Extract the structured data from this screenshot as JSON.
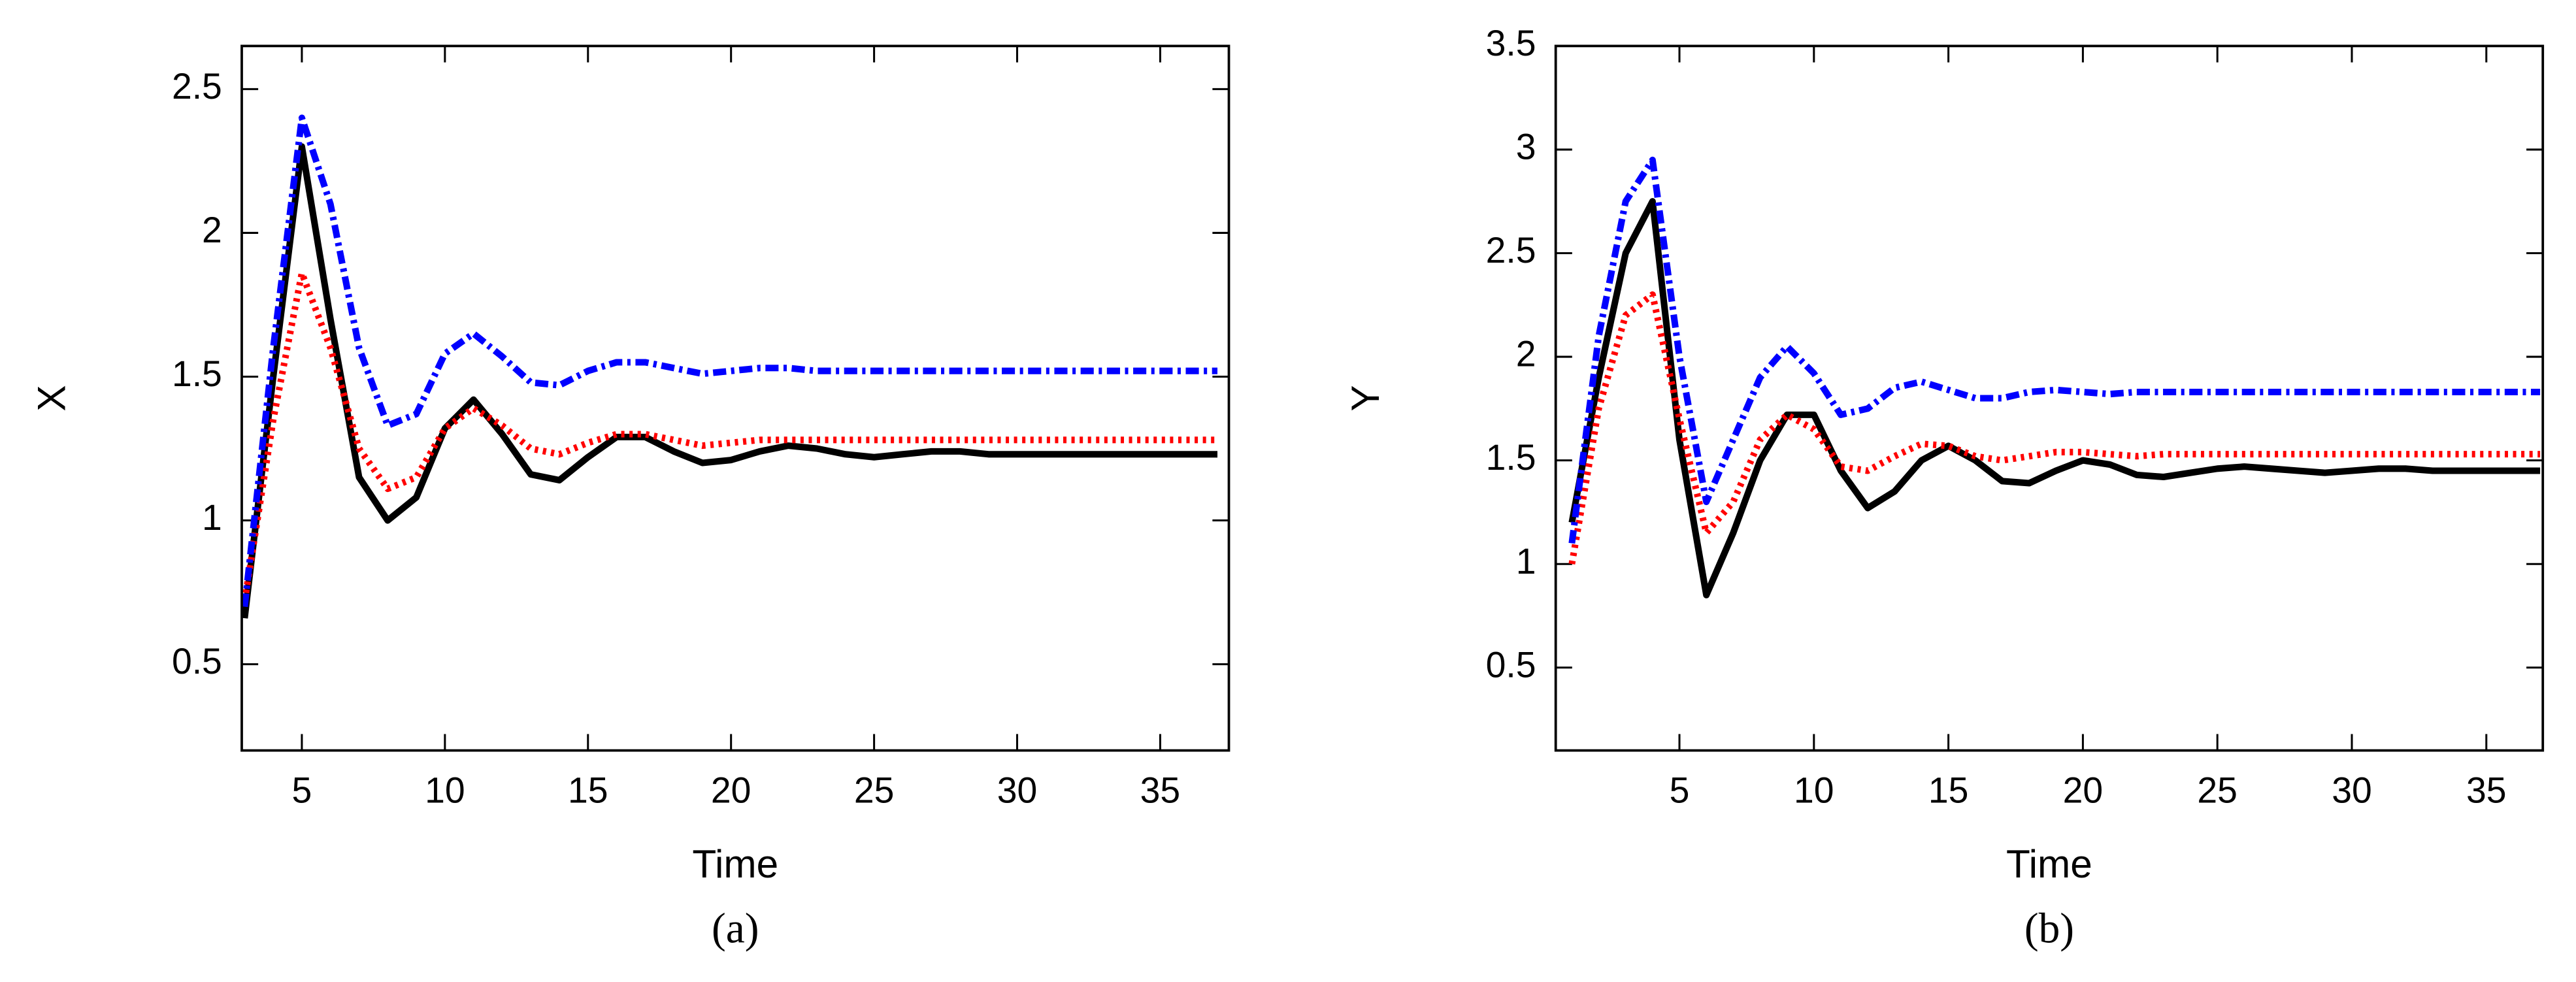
{
  "chart_data": [
    {
      "type": "line",
      "caption": "(a)",
      "xlabel": "Time",
      "ylabel": "X",
      "x": [
        3,
        4,
        5,
        6,
        7,
        8,
        9,
        10,
        11,
        12,
        13,
        14,
        15,
        16,
        17,
        18,
        19,
        20,
        21,
        22,
        23,
        24,
        25,
        26,
        27,
        28,
        29,
        30,
        31,
        32,
        33,
        34,
        35,
        36,
        37
      ],
      "series": [
        {
          "color": "#000000",
          "style": "solid",
          "values": [
            0.66,
            1.5,
            2.3,
            1.7,
            1.15,
            1.0,
            1.08,
            1.32,
            1.42,
            1.3,
            1.16,
            1.14,
            1.22,
            1.29,
            1.29,
            1.24,
            1.2,
            1.21,
            1.24,
            1.26,
            1.25,
            1.23,
            1.22,
            1.23,
            1.24,
            1.24,
            1.23,
            1.23,
            1.23,
            1.23,
            1.23,
            1.23,
            1.23,
            1.23,
            1.23
          ]
        },
        {
          "color": "#ff0000",
          "style": "dotted",
          "values": [
            0.72,
            1.35,
            1.86,
            1.6,
            1.25,
            1.11,
            1.15,
            1.32,
            1.39,
            1.33,
            1.25,
            1.23,
            1.27,
            1.3,
            1.3,
            1.28,
            1.26,
            1.27,
            1.28,
            1.28,
            1.28,
            1.28,
            1.28,
            1.28,
            1.28,
            1.28,
            1.28,
            1.28,
            1.28,
            1.28,
            1.28,
            1.28,
            1.28,
            1.28,
            1.28
          ]
        },
        {
          "color": "#0000ff",
          "style": "dashdot",
          "values": [
            0.7,
            1.6,
            2.4,
            2.1,
            1.6,
            1.33,
            1.37,
            1.58,
            1.65,
            1.57,
            1.48,
            1.47,
            1.52,
            1.55,
            1.55,
            1.53,
            1.51,
            1.52,
            1.53,
            1.53,
            1.52,
            1.52,
            1.52,
            1.52,
            1.52,
            1.52,
            1.52,
            1.52,
            1.52,
            1.52,
            1.52,
            1.52,
            1.52,
            1.52,
            1.52
          ]
        }
      ],
      "xlim": [
        2.9,
        37.4
      ],
      "xticks": [
        5,
        10,
        15,
        20,
        25,
        30,
        35
      ],
      "ylim": [
        0.2,
        2.65
      ],
      "yticks": [
        0.5,
        1,
        1.5,
        2,
        2.5
      ]
    },
    {
      "type": "line",
      "caption": "(b)",
      "xlabel": "Time",
      "ylabel": "Y",
      "x": [
        1,
        2,
        3,
        4,
        5,
        6,
        7,
        8,
        9,
        10,
        11,
        12,
        13,
        14,
        15,
        16,
        17,
        18,
        19,
        20,
        21,
        22,
        23,
        24,
        25,
        26,
        27,
        28,
        29,
        30,
        31,
        32,
        33,
        34,
        35,
        36,
        37
      ],
      "series": [
        {
          "color": "#000000",
          "style": "solid",
          "values": [
            1.2,
            1.9,
            2.5,
            2.75,
            1.6,
            0.85,
            1.15,
            1.5,
            1.72,
            1.72,
            1.45,
            1.27,
            1.35,
            1.5,
            1.57,
            1.5,
            1.4,
            1.39,
            1.45,
            1.5,
            1.48,
            1.43,
            1.42,
            1.44,
            1.46,
            1.47,
            1.46,
            1.45,
            1.44,
            1.45,
            1.46,
            1.46,
            1.45,
            1.45,
            1.45,
            1.45,
            1.45
          ]
        },
        {
          "color": "#ff0000",
          "style": "dotted",
          "values": [
            1.0,
            1.75,
            2.2,
            2.3,
            1.7,
            1.15,
            1.3,
            1.6,
            1.72,
            1.65,
            1.47,
            1.45,
            1.52,
            1.58,
            1.57,
            1.52,
            1.5,
            1.52,
            1.54,
            1.54,
            1.53,
            1.52,
            1.53,
            1.53,
            1.53,
            1.53,
            1.53,
            1.53,
            1.53,
            1.53,
            1.53,
            1.53,
            1.53,
            1.53,
            1.53,
            1.53,
            1.53
          ]
        },
        {
          "color": "#0000ff",
          "style": "dashdot",
          "values": [
            1.1,
            2.1,
            2.75,
            2.95,
            2.0,
            1.3,
            1.6,
            1.9,
            2.05,
            1.92,
            1.72,
            1.75,
            1.85,
            1.88,
            1.84,
            1.8,
            1.8,
            1.83,
            1.84,
            1.83,
            1.82,
            1.83,
            1.83,
            1.83,
            1.83,
            1.83,
            1.83,
            1.83,
            1.83,
            1.83,
            1.83,
            1.83,
            1.83,
            1.83,
            1.83,
            1.83,
            1.83
          ]
        }
      ],
      "xlim": [
        0.4,
        37.1
      ],
      "xticks": [
        5,
        10,
        15,
        20,
        25,
        30,
        35
      ],
      "ylim": [
        0.1,
        3.5
      ],
      "yticks": [
        0.5,
        1,
        1.5,
        2,
        2.5,
        3,
        3.5
      ]
    }
  ]
}
